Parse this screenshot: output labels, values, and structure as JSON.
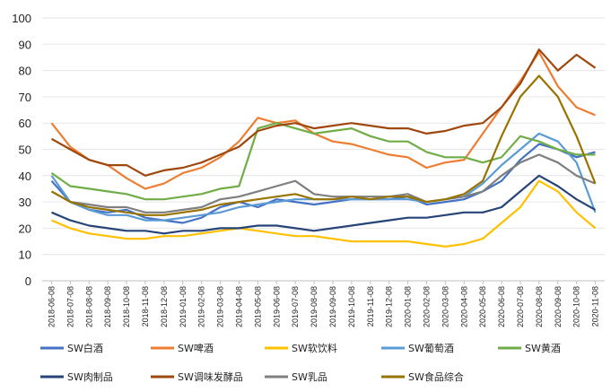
{
  "chart_data": {
    "type": "line",
    "ylim": [
      0,
      100
    ],
    "yticks": [
      "0",
      "10",
      "20",
      "30",
      "40",
      "50",
      "60",
      "70",
      "80",
      "90",
      "100"
    ],
    "x": [
      "2018-06-08",
      "2018-07-08",
      "2018-08-08",
      "2018-09-08",
      "2018-10-08",
      "2018-11-08",
      "2018-12-08",
      "2019-01-08",
      "2019-02-08",
      "2019-03-08",
      "2019-04-08",
      "2019-05-08",
      "2019-06-08",
      "2019-07-08",
      "2019-08-08",
      "2019-09-08",
      "2019-10-08",
      "2019-11-08",
      "2019-12-08",
      "2020-01-08",
      "2020-02-08",
      "2020-03-08",
      "2020-04-08",
      "2020-05-08",
      "2020-06-08",
      "2020-07-08",
      "2020-08-08",
      "2020-09-08",
      "2020-10-08",
      "2020-11-08"
    ],
    "legend_position": "bottom",
    "series": [
      {
        "name": "SW白酒",
        "color": "#4472C4",
        "values": [
          38,
          30,
          27,
          26,
          27,
          24,
          23,
          22,
          24,
          28,
          30,
          28,
          31,
          30,
          29,
          30,
          31,
          31,
          31,
          32,
          29,
          30,
          31,
          34,
          38,
          46,
          52,
          50,
          47,
          49
        ]
      },
      {
        "name": "SW啤酒",
        "color": "#ED7D31",
        "values": [
          60,
          51,
          46,
          44,
          39,
          35,
          37,
          41,
          43,
          47,
          53,
          62,
          60,
          61,
          56,
          53,
          52,
          50,
          48,
          47,
          43,
          45,
          46,
          56,
          66,
          76,
          87,
          74,
          66,
          63
        ]
      },
      {
        "name": "SW软饮料",
        "color": "#FFC000",
        "values": [
          23,
          20,
          18,
          17,
          16,
          16,
          17,
          17,
          18,
          19,
          20,
          19,
          18,
          17,
          17,
          16,
          15,
          15,
          15,
          15,
          14,
          13,
          14,
          16,
          22,
          28,
          38,
          34,
          26,
          20
        ]
      },
      {
        "name": "SW葡萄酒",
        "color": "#5B9BD5",
        "values": [
          40,
          30,
          27,
          25,
          25,
          23,
          23,
          24,
          25,
          26,
          28,
          29,
          30,
          31,
          31,
          31,
          31,
          31,
          31,
          31,
          30,
          31,
          32,
          37,
          44,
          50,
          56,
          53,
          45,
          26
        ]
      },
      {
        "name": "SW黄酒",
        "color": "#70AD47",
        "values": [
          41,
          36,
          35,
          34,
          33,
          31,
          31,
          32,
          33,
          35,
          36,
          58,
          60,
          58,
          56,
          57,
          58,
          55,
          53,
          53,
          49,
          47,
          47,
          45,
          47,
          55,
          53,
          50,
          48,
          48
        ]
      },
      {
        "name": "SW肉制品",
        "color": "#264478",
        "values": [
          26,
          23,
          21,
          20,
          19,
          19,
          18,
          19,
          19,
          20,
          20,
          21,
          21,
          20,
          19,
          20,
          21,
          22,
          23,
          24,
          24,
          25,
          26,
          26,
          28,
          34,
          40,
          36,
          31,
          27
        ]
      },
      {
        "name": "SW调味发酵品",
        "color": "#9E480E",
        "values": [
          54,
          50,
          46,
          44,
          44,
          40,
          42,
          43,
          45,
          48,
          51,
          57,
          59,
          60,
          58,
          59,
          60,
          59,
          58,
          58,
          56,
          57,
          59,
          60,
          66,
          75,
          88,
          80,
          86,
          81
        ]
      },
      {
        "name": "SW乳品",
        "color": "#7F7F7F",
        "values": [
          34,
          30,
          29,
          28,
          28,
          26,
          26,
          27,
          28,
          31,
          32,
          34,
          36,
          38,
          33,
          32,
          32,
          32,
          32,
          33,
          30,
          31,
          32,
          34,
          40,
          45,
          48,
          45,
          40,
          37
        ]
      },
      {
        "name": "SW食品综合",
        "color": "#997300",
        "values": [
          34,
          30,
          28,
          27,
          26,
          25,
          25,
          26,
          27,
          29,
          30,
          31,
          32,
          33,
          31,
          31,
          32,
          31,
          32,
          32,
          30,
          31,
          33,
          38,
          55,
          70,
          78,
          70,
          55,
          37
        ]
      }
    ]
  }
}
